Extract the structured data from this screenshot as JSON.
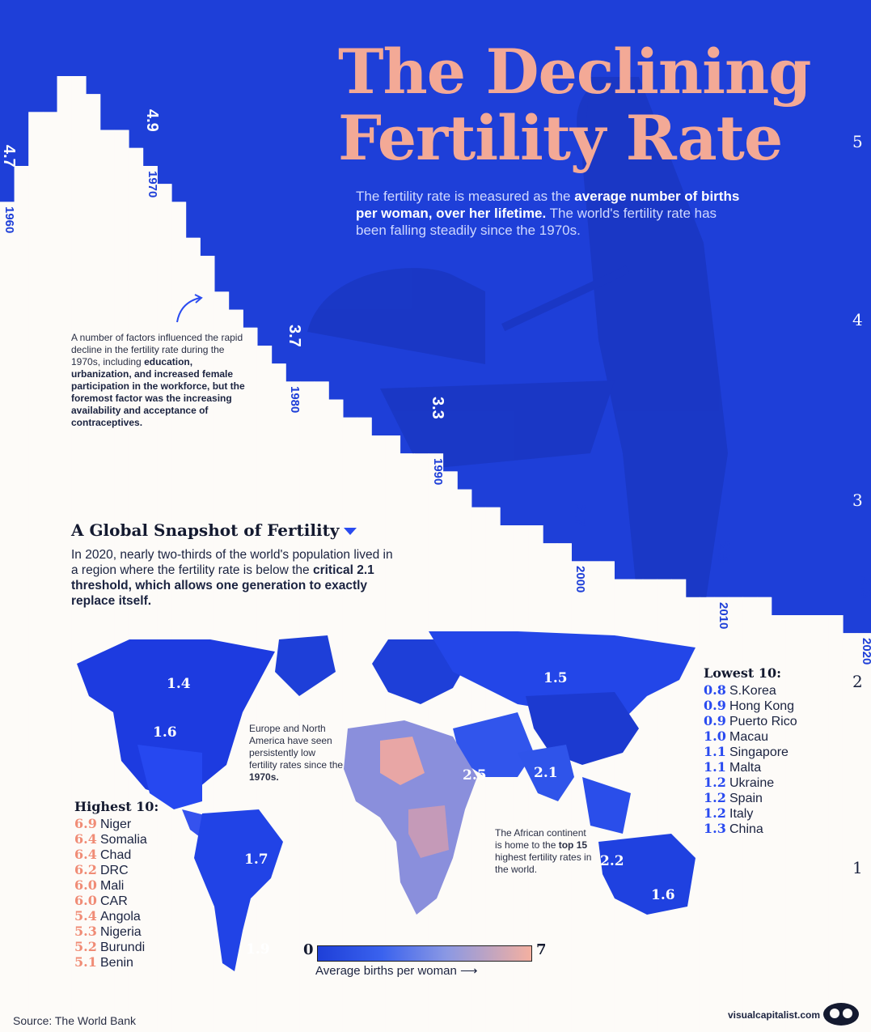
{
  "title_line1": "The Declining",
  "title_line2": "Fertility Rate",
  "intro": {
    "part1": "The fertility rate is measured as the ",
    "bold": "average number of births per woman, over her lifetime.",
    "part2": " The world's fertility rate has been falling steadily since the 1970s."
  },
  "chart_data": {
    "type": "bar",
    "title": "The Declining Fertility Rate",
    "ylabel": "Average births per woman",
    "ylim": [
      1,
      5.55
    ],
    "y_ticks": [
      "5",
      "4",
      "3",
      "2",
      "1"
    ],
    "x": [
      1960,
      1961,
      1962,
      1963,
      1964,
      1965,
      1966,
      1967,
      1968,
      1969,
      1970,
      1971,
      1972,
      1973,
      1974,
      1975,
      1976,
      1977,
      1978,
      1979,
      1980,
      1981,
      1982,
      1983,
      1984,
      1985,
      1986,
      1987,
      1988,
      1989,
      1990,
      1991,
      1992,
      1993,
      1994,
      1995,
      1996,
      1997,
      1998,
      1999,
      2000,
      2001,
      2002,
      2003,
      2004,
      2005,
      2006,
      2007,
      2008,
      2009,
      2010,
      2011,
      2012,
      2013,
      2014,
      2015,
      2016,
      2017,
      2018,
      2019,
      2020
    ],
    "values": [
      4.7,
      4.9,
      5.2,
      5.2,
      5.4,
      5.4,
      5.3,
      5.1,
      5.1,
      5.0,
      4.9,
      4.8,
      4.7,
      4.5,
      4.4,
      4.2,
      4.1,
      4.0,
      3.9,
      3.8,
      3.7,
      3.7,
      3.7,
      3.6,
      3.5,
      3.5,
      3.4,
      3.4,
      3.3,
      3.3,
      3.3,
      3.2,
      3.1,
      3.0,
      3.0,
      2.9,
      2.9,
      2.9,
      2.8,
      2.8,
      2.7,
      2.7,
      2.7,
      2.6,
      2.6,
      2.6,
      2.6,
      2.6,
      2.5,
      2.5,
      2.5,
      2.5,
      2.5,
      2.5,
      2.4,
      2.4,
      2.4,
      2.4,
      2.4,
      2.3,
      2.3
    ],
    "year_labels": [
      {
        "year": 1960,
        "label": "1960",
        "value": "4.7"
      },
      {
        "year": 1970,
        "label": "1970",
        "value": "4.9"
      },
      {
        "year": 1980,
        "label": "1980",
        "value": "3.7"
      },
      {
        "year": 1990,
        "label": "1990",
        "value": "3.3"
      },
      {
        "year": 2000,
        "label": "2000",
        "value": "2.7"
      },
      {
        "year": 2010,
        "label": "2010",
        "value": "2.5"
      },
      {
        "year": 2020,
        "label": "2020",
        "value": "2.3"
      }
    ],
    "colors": {
      "bars": "#fdfbf8",
      "background": "#1e3fd8"
    }
  },
  "factors_note": {
    "part1": "A number of factors influenced the rapid decline in the fertility rate during the 1970s, including ",
    "bold": "education, urbanization, and increased female participation in the workforce, but the foremost factor was the increasing availability and acceptance of contraceptives."
  },
  "snapshot": {
    "title": "A Global Snapshot of Fertility",
    "text1": "In 2020, nearly two-thirds of the world's population lived in a region where the fertility rate is below the ",
    "bold": "critical 2.1 threshold, which allows one generation to exactly replace itself."
  },
  "map_labels": {
    "canada": "1.4",
    "usa": "1.6",
    "brazil": "1.7",
    "argentina": "1.9",
    "russia": "1.5",
    "middle_east": "2.5",
    "south_asia": "2.1",
    "southeast_asia": "2.2",
    "australia": "1.6"
  },
  "notes": {
    "europe_na_part1": "Europe and North America have seen persistently low fertility rates since the ",
    "europe_na_bold": "1970s.",
    "africa_part1": "The African continent is home to the ",
    "africa_bold": "top 15",
    "africa_part2": " highest fertility rates in the world."
  },
  "highest": {
    "title": "Highest 10:",
    "rows": [
      {
        "value": "6.9",
        "country": "Niger"
      },
      {
        "value": "6.4",
        "country": "Somalia"
      },
      {
        "value": "6.4",
        "country": "Chad"
      },
      {
        "value": "6.2",
        "country": "DRC"
      },
      {
        "value": "6.0",
        "country": "Mali"
      },
      {
        "value": "6.0",
        "country": "CAR"
      },
      {
        "value": "5.4",
        "country": "Angola"
      },
      {
        "value": "5.3",
        "country": "Nigeria"
      },
      {
        "value": "5.2",
        "country": "Burundi"
      },
      {
        "value": "5.1",
        "country": "Benin"
      }
    ]
  },
  "lowest": {
    "title": "Lowest 10:",
    "rows": [
      {
        "value": "0.8",
        "country": "S.Korea"
      },
      {
        "value": "0.9",
        "country": "Hong Kong"
      },
      {
        "value": "0.9",
        "country": "Puerto Rico"
      },
      {
        "value": "1.0",
        "country": "Macau"
      },
      {
        "value": "1.1",
        "country": "Singapore"
      },
      {
        "value": "1.1",
        "country": "Malta"
      },
      {
        "value": "1.2",
        "country": "Ukraine"
      },
      {
        "value": "1.2",
        "country": "Spain"
      },
      {
        "value": "1.2",
        "country": "Italy"
      },
      {
        "value": "1.3",
        "country": "China"
      }
    ]
  },
  "legend": {
    "min": "0",
    "max": "7",
    "label": "Average births per woman",
    "low_color": "#1e3fd8",
    "high_color": "#f4b0a0"
  },
  "source": "Source: The World Bank",
  "brand": "visualcapitalist.com"
}
